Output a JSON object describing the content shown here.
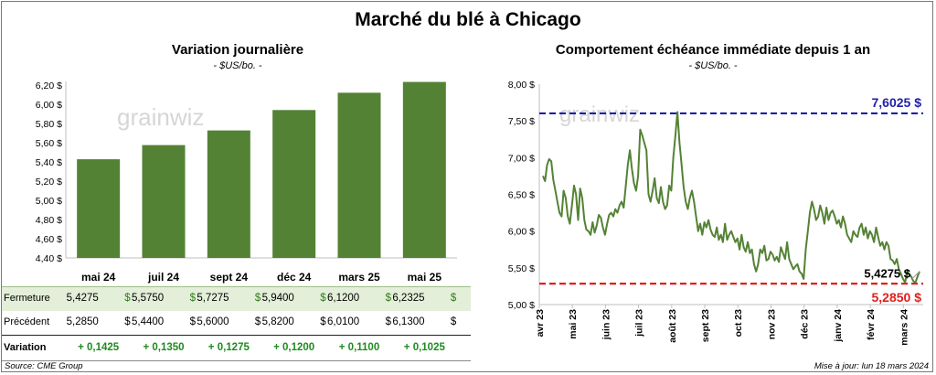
{
  "title": "Marché du blé à Chicago",
  "colors": {
    "bar": "#548235",
    "line": "#548235",
    "high_line": "#1f1fa8",
    "low_line": "#e0201c",
    "gain": "#1f8a1f"
  },
  "chart_data": [
    {
      "type": "bar",
      "title": "Variation journalière",
      "unit": "- $US/bo. -",
      "watermark": "grainwiz",
      "categories": [
        "mai 24",
        "juil 24",
        "sept 24",
        "déc 24",
        "mars 25",
        "mai 25"
      ],
      "values": [
        5.4275,
        5.575,
        5.7275,
        5.94,
        6.12,
        6.2325
      ],
      "ylim": [
        4.4,
        6.2
      ],
      "yticks": [
        "4,40 $",
        "4,60 $",
        "4,80 $",
        "5,00 $",
        "5,20 $",
        "5,40 $",
        "5,60 $",
        "5,80 $",
        "6,00 $",
        "6,20 $"
      ],
      "ytick_values": [
        4.4,
        4.6,
        4.8,
        5.0,
        5.2,
        5.4,
        5.6,
        5.8,
        6.0,
        6.2
      ]
    },
    {
      "type": "line",
      "title": "Comportement échéance immédiate depuis 1 an",
      "unit": "- $US/bo. -",
      "watermark": "grainwiz",
      "ylim": [
        5.0,
        8.0
      ],
      "yticks": [
        "5,00 $",
        "5,50 $",
        "6,00 $",
        "6,50 $",
        "7,00 $",
        "7,50 $",
        "8,00 $"
      ],
      "ytick_values": [
        5.0,
        5.5,
        6.0,
        6.5,
        7.0,
        7.5,
        8.0
      ],
      "xlabels": [
        "avr 23",
        "mai 23",
        "juin 23",
        "juil 23",
        "août 23",
        "sept 23",
        "oct 23",
        "nov 23",
        "déc 23",
        "janv 24",
        "févr 24",
        "mars 24"
      ],
      "high": 7.6025,
      "high_label": "7,6025 $",
      "low": 5.285,
      "low_label": "5,2850 $",
      "last": 5.4275,
      "last_label": "5,4275 $",
      "values": [
        6.75,
        6.68,
        6.9,
        6.98,
        6.95,
        6.7,
        6.55,
        6.4,
        6.25,
        6.2,
        6.55,
        6.45,
        6.2,
        6.1,
        6.35,
        6.62,
        6.5,
        6.15,
        6.58,
        6.45,
        6.15,
        6.02,
        6.0,
        5.95,
        6.12,
        5.98,
        6.08,
        6.22,
        6.18,
        6.05,
        5.95,
        6.1,
        6.22,
        6.25,
        6.2,
        6.3,
        6.25,
        6.35,
        6.4,
        6.32,
        6.6,
        6.9,
        7.1,
        6.85,
        6.65,
        6.55,
        6.75,
        7.38,
        7.3,
        7.2,
        7.1,
        6.5,
        6.4,
        6.55,
        6.72,
        6.45,
        6.38,
        6.6,
        6.4,
        6.3,
        6.35,
        6.62,
        6.55,
        7.0,
        7.3,
        7.62,
        7.2,
        6.9,
        6.6,
        6.4,
        6.3,
        6.45,
        6.55,
        6.4,
        6.2,
        6.0,
        6.1,
        5.95,
        6.12,
        6.05,
        6.15,
        6.02,
        5.95,
        5.92,
        6.05,
        5.88,
        5.95,
        5.85,
        6.1,
        5.88,
        5.95,
        6.0,
        5.92,
        5.85,
        5.9,
        5.75,
        5.95,
        5.78,
        5.72,
        5.85,
        5.7,
        5.75,
        5.55,
        5.45,
        5.55,
        5.75,
        5.7,
        5.8,
        5.6,
        5.62,
        5.72,
        5.68,
        5.6,
        5.65,
        5.58,
        5.78,
        5.7,
        5.62,
        5.85,
        5.62,
        5.55,
        5.48,
        5.52,
        5.55,
        5.45,
        5.42,
        5.35,
        5.75,
        6.0,
        6.25,
        6.4,
        6.3,
        6.15,
        6.2,
        6.35,
        6.25,
        6.1,
        6.32,
        6.15,
        6.25,
        6.28,
        6.2,
        6.1,
        6.15,
        6.05,
        6.2,
        6.1,
        5.95,
        5.9,
        5.85,
        6.0,
        5.95,
        5.92,
        6.05,
        6.1,
        5.95,
        6.05,
        5.9,
        6.0,
        5.95,
        5.85,
        6.05,
        5.92,
        5.8,
        5.85,
        5.75,
        5.85,
        5.8,
        5.62,
        5.6,
        5.55,
        5.62,
        5.48,
        5.42,
        5.35,
        5.3,
        5.45,
        5.42,
        5.38,
        5.32,
        5.3,
        5.38,
        5.45
      ]
    }
  ],
  "table": {
    "rows": [
      {
        "label": "Fermeture",
        "bold": false,
        "cells": [
          {
            "value": "5,4275",
            "unit": "$"
          },
          {
            "value": "5,5750",
            "unit": "$"
          },
          {
            "value": "5,7275",
            "unit": "$"
          },
          {
            "value": "5,9400",
            "unit": "$"
          },
          {
            "value": "6,1200",
            "unit": "$"
          },
          {
            "value": "6,2325",
            "unit": "$"
          }
        ]
      },
      {
        "label": "Précédent",
        "bold": false,
        "cells": [
          {
            "value": "5,2850",
            "unit": "$"
          },
          {
            "value": "5,4400",
            "unit": "$"
          },
          {
            "value": "5,6000",
            "unit": "$"
          },
          {
            "value": "5,8200",
            "unit": "$"
          },
          {
            "value": "6,0100",
            "unit": "$"
          },
          {
            "value": "6,1300",
            "unit": "$"
          }
        ]
      },
      {
        "label": "Variation",
        "bold": true,
        "cells": [
          {
            "value": "+ 0,1425",
            "unit": ""
          },
          {
            "value": "+ 0,1350",
            "unit": ""
          },
          {
            "value": "+ 0,1275",
            "unit": ""
          },
          {
            "value": "+ 0,1200",
            "unit": ""
          },
          {
            "value": "+ 0,1100",
            "unit": ""
          },
          {
            "value": "+ 0,1025",
            "unit": ""
          }
        ]
      }
    ]
  },
  "footer": {
    "source": "Source: CME Group",
    "update": "Mise à jour: lun 18 mars 2024"
  }
}
